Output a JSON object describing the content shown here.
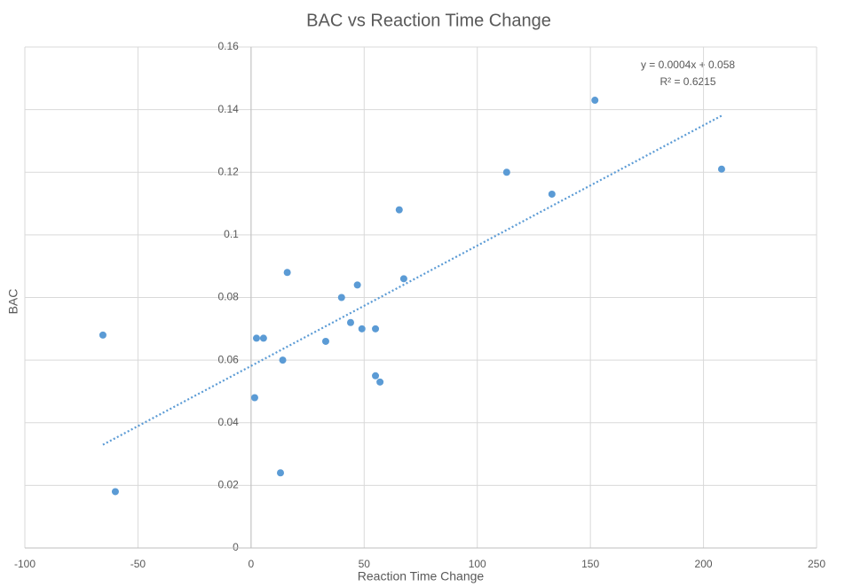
{
  "chart_data": {
    "type": "scatter",
    "title": "BAC vs Reaction Time Change",
    "x_label": "Reaction Time Change",
    "y_label": "BAC",
    "series": [
      {
        "color": "#5b9bd5",
        "x": [
          -65.5,
          -60,
          1.6,
          2.4,
          5.5,
          13,
          14,
          16,
          33,
          40,
          44,
          47,
          49,
          55,
          55,
          57,
          65.5,
          67.5,
          113,
          133,
          152,
          208
        ],
        "values": [
          0.068,
          0.018,
          0.048,
          0.067,
          0.067,
          0.024,
          0.06,
          0.088,
          0.066,
          0.08,
          0.072,
          0.084,
          0.07,
          0.07,
          0.055,
          0.053,
          0.108,
          0.086,
          0.12,
          0.113,
          0.143,
          0.121
        ]
      }
    ],
    "trendline": {
      "equation": "y = 0.0004x + 0.058",
      "r_squared": "R² = 0.6215",
      "color": "#5b9bd5"
    },
    "xlim": [
      -100,
      250
    ],
    "xticks": [
      -100,
      -50,
      0,
      50,
      100,
      150,
      200,
      250
    ],
    "ylim": [
      0,
      0.16
    ],
    "yticks": [
      0,
      0.02,
      0.04,
      0.06,
      0.08,
      0.1,
      0.12,
      0.14,
      0.16
    ],
    "grid": true
  }
}
